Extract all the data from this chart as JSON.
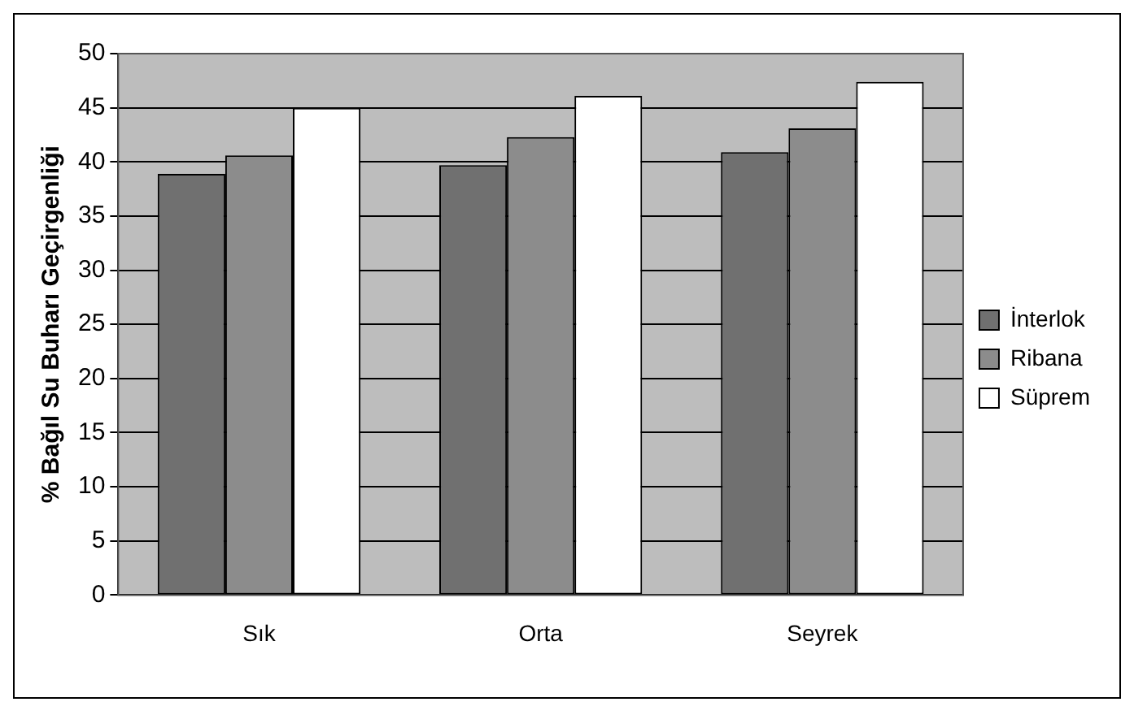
{
  "chart_data": {
    "type": "bar",
    "ylabel": "% Bağıl Su Buharı Geçirgenliği",
    "categories": [
      "Sık",
      "Orta",
      "Seyrek"
    ],
    "series": [
      {
        "name": "İnterlok",
        "color": "#707070",
        "values": [
          38.9,
          39.7,
          40.9
        ]
      },
      {
        "name": "Ribana",
        "color": "#8c8c8c",
        "values": [
          40.6,
          42.3,
          43.1
        ]
      },
      {
        "name": "Süprem",
        "color": "#ffffff",
        "values": [
          45,
          46.1,
          47.4
        ]
      }
    ],
    "ylim": [
      0,
      50
    ],
    "yticks": [
      0,
      5,
      10,
      15,
      20,
      25,
      30,
      35,
      40,
      45,
      50
    ],
    "grid": "y",
    "legend": "right"
  }
}
